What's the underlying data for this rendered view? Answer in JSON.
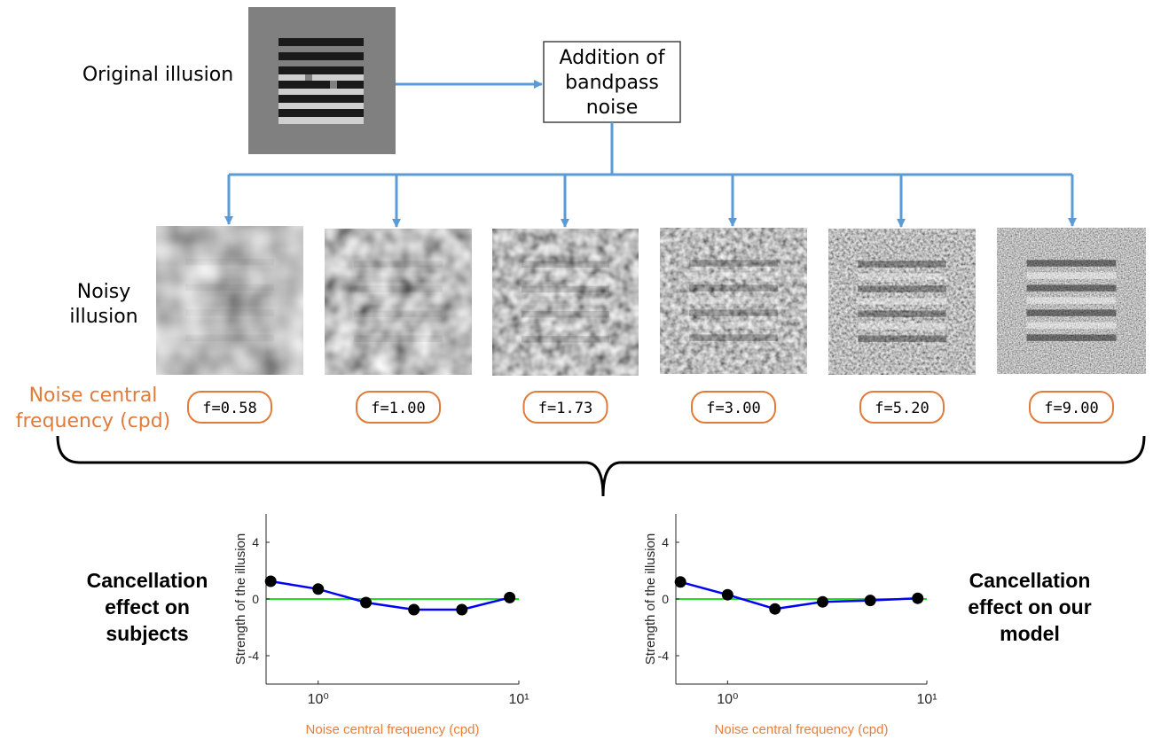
{
  "original_label": "Original illusion",
  "process_box": "Addition of bandpass noise",
  "noisy_label": "Noisy illusion",
  "frequency_label": "Noise central frequency (cpd)",
  "frequency_tags": [
    "f=0.58",
    "f=1.00",
    "f=1.73",
    "f=3.00",
    "f=5.20",
    "f=9.00"
  ],
  "result_labels": [
    "Cancellation effect on subjects",
    "Cancellation effect on our model"
  ],
  "chart_data": [
    {
      "type": "line",
      "xscale": "log",
      "xlabel": "Noise central frequency (cpd)",
      "ylabel": "Strength of the illusion",
      "x": [
        0.58,
        1,
        1.73,
        3,
        5.2,
        9
      ],
      "values": [
        1.25,
        0.7,
        -0.25,
        -0.75,
        -0.75,
        0.1
      ],
      "color": "#0000ff",
      "marker_color": "#000000",
      "xlabel_color": "#e87e3a",
      "xlim": [
        0.55,
        10
      ],
      "xticks": [
        {
          "value": 1,
          "label": "10⁰"
        },
        {
          "value": 10,
          "label": "10¹"
        }
      ],
      "ylim": [
        -6,
        6
      ],
      "yticks": [
        -4,
        0,
        4
      ],
      "reference_line": {
        "value": 0,
        "color": "#22dd22"
      }
    },
    {
      "type": "line",
      "xscale": "log",
      "xlabel": "Noise central frequency (cpd)",
      "ylabel": "Strength of the illusion",
      "x": [
        0.58,
        1,
        1.73,
        3,
        5.2,
        9
      ],
      "values": [
        1.2,
        0.3,
        -0.7,
        -0.2,
        -0.1,
        0.05
      ],
      "color": "#0000ff",
      "marker_color": "#000000",
      "xlabel_color": "#e87e3a",
      "xlim": [
        0.55,
        10
      ],
      "xticks": [
        {
          "value": 1,
          "label": "10⁰"
        },
        {
          "value": 10,
          "label": "10¹"
        }
      ],
      "ylim": [
        -6,
        6
      ],
      "yticks": [
        -4,
        0,
        4
      ],
      "reference_line": {
        "value": 0,
        "color": "#22dd22"
      }
    }
  ]
}
